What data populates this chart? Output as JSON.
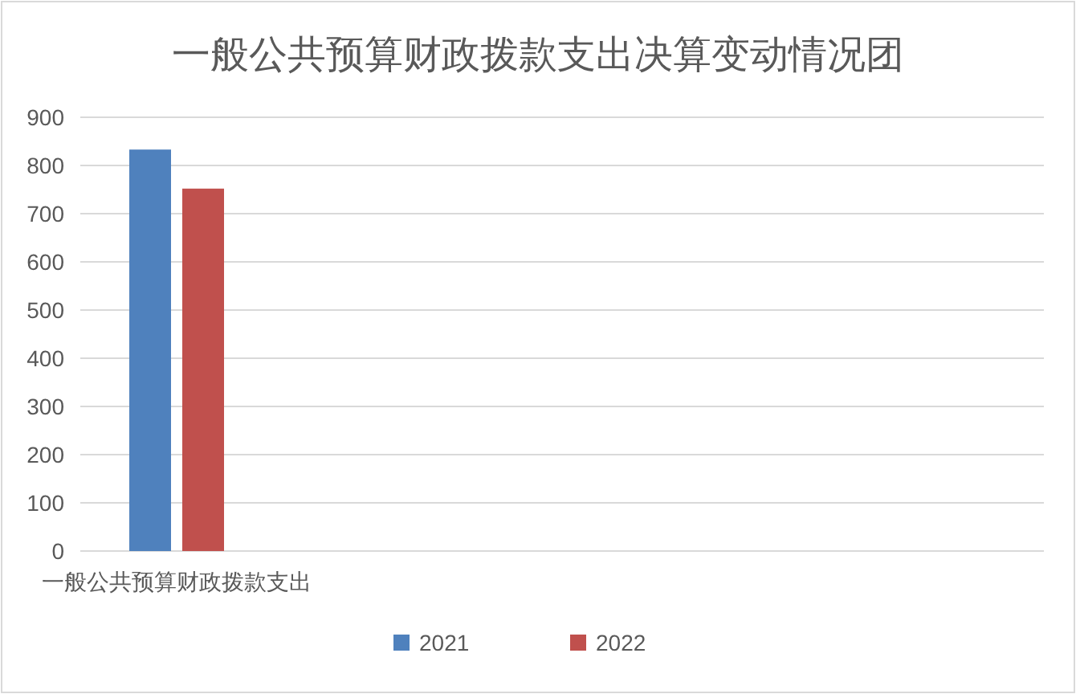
{
  "chart_data": {
    "type": "bar",
    "title": "一般公共预算财政拨款支出决算变动情况团",
    "categories": [
      "一般公共预算财政拨款支出",
      null,
      null,
      null,
      null
    ],
    "series": [
      {
        "name": "2021",
        "color": "#4f81bd",
        "values": [
          833,
          null,
          null,
          null,
          null
        ]
      },
      {
        "name": "2022",
        "color": "#c0504d",
        "values": [
          752,
          null,
          null,
          null,
          null
        ]
      }
    ],
    "ylim": [
      0,
      900
    ],
    "yticks": [
      0,
      100,
      200,
      300,
      400,
      500,
      600,
      700,
      800,
      900
    ],
    "grid": "y",
    "legend": "bottom"
  }
}
